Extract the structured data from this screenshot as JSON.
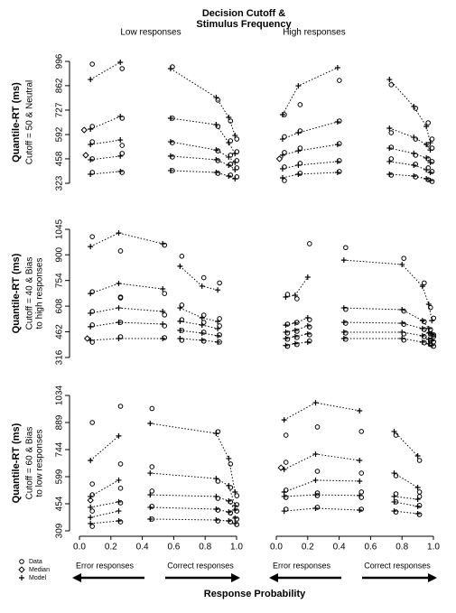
{
  "figure": {
    "title": [
      "Decision Cutoff &",
      "Stimulus Frequency"
    ],
    "xlabel": "Response Probability",
    "legend": [
      {
        "name": "Data",
        "marker": "circle"
      },
      {
        "name": "Median",
        "marker": "diamond"
      },
      {
        "name": "Model",
        "marker": "plus"
      }
    ]
  },
  "chart_data": [
    {
      "type": "scatter",
      "title": "Low responses",
      "ylabel": "Quantile-RT (ms)",
      "subtitle": [
        "Cutoff = 50 & Neutral"
      ],
      "xlim": [
        0,
        1
      ],
      "ylim": [
        323,
        996
      ],
      "yticks": [
        323,
        458,
        592,
        727,
        862,
        996
      ],
      "groups": [
        {
          "x": [
            0.07,
            0.26
          ],
          "model": [
            [
              373,
              388
            ],
            [
              453,
              473
            ],
            [
              537,
              562
            ],
            [
              622,
              692
            ],
            [
              896,
              991
            ]
          ],
          "data": [
            [
              383,
              383
            ],
            [
              458,
              488
            ],
            [
              552,
              532
            ],
            [
              637,
              682
            ],
            [
              981,
              956
            ]
          ]
        },
        {
          "x": [
            0.58,
            0.87,
            0.95,
            0.99
          ],
          "model": [
            [
              393,
              383,
              363,
              348
            ],
            [
              473,
              453,
              423,
              398
            ],
            [
              552,
              507,
              468,
              438
            ],
            [
              682,
              647,
              547,
              487
            ],
            [
              956,
              797,
              687,
              587
            ]
          ],
          "data": [
            [
              393,
              378,
              368,
              358
            ],
            [
              468,
              448,
              428,
              408
            ],
            [
              547,
              502,
              478,
              448
            ],
            [
              682,
              637,
              557,
              497
            ],
            [
              966,
              782,
              667,
              567
            ]
          ]
        }
      ],
      "median": {
        "x": [
          0.03,
          0.04
        ],
        "values": [
          617,
          478
        ]
      }
    },
    {
      "type": "scatter",
      "title": "High responses",
      "xlim": [
        0,
        1
      ],
      "ylim": [
        323,
        996
      ],
      "groups": [
        {
          "x": [
            0.04,
            0.14,
            0.39
          ],
          "model": [
            [
              353,
              373,
              383
            ],
            [
              403,
              423,
              443
            ],
            [
              478,
              502,
              537
            ],
            [
              567,
              602,
              662
            ],
            [
              702,
              861,
              961
            ]
          ],
          "data": [
            [
              338,
              378,
              388
            ],
            [
              413,
              433,
              448
            ],
            [
              493,
              517,
              542
            ],
            [
              580,
              612,
              667
            ],
            [
              702,
              757,
              891
            ]
          ]
        },
        {
          "x": [
            0.72,
            0.875,
            0.955,
            0.98
          ],
          "model": [
            [
              373,
              363,
              348,
              338
            ],
            [
              443,
              423,
              398,
              383
            ],
            [
              517,
              488,
              463,
              438
            ],
            [
              627,
              577,
              537,
              507
            ],
            [
              896,
              747,
              637,
              547
            ]
          ],
          "data": [
            [
              368,
              358,
              343,
              333
            ],
            [
              458,
              428,
              408,
              388
            ],
            [
              522,
              478,
              458,
              443
            ],
            [
              602,
              567,
              537,
              517
            ],
            [
              867,
              737,
              657,
              567
            ]
          ]
        }
      ],
      "median": {
        "x": [
          0.02
        ],
        "values": [
          458
        ]
      }
    },
    {
      "type": "scatter",
      "ylabel": "Quantile-RT (ms)",
      "subtitle": [
        "Cutoff = 40 & Bias",
        "to high responses"
      ],
      "xlim": [
        0,
        1
      ],
      "ylim": [
        316,
        1045
      ],
      "yticks": [
        316,
        462,
        608,
        754,
        900,
        1045
      ],
      "groups": [
        {
          "x": [
            0.07,
            0.25,
            0.53
          ],
          "model": [
            [
              414,
              424,
              424
            ],
            [
              491,
              516,
              506
            ],
            [
              568,
              598,
              578
            ],
            [
              680,
              737,
              706
            ],
            [
              947,
              1024,
              963
            ]
          ],
          "data": [
            [
              403,
              434,
              429
            ],
            [
              501,
              516,
              496
            ],
            [
              578,
              655,
              558
            ],
            [
              690,
              660,
              680
            ],
            [
              1003,
              922,
              955
            ]
          ]
        },
        {
          "x": [
            0.64,
            0.78,
            0.88
          ],
          "model": [
            [
              424,
              414,
              404
            ],
            [
              470,
              455,
              440
            ],
            [
              522,
              501,
              480
            ],
            [
              598,
              542,
              521
            ],
            [
              835,
              722,
              700
            ]
          ],
          "data": [
            [
              414,
              409,
              404
            ],
            [
              470,
              460,
              445
            ],
            [
              531,
              516,
              496
            ],
            [
              614,
              557,
              537
            ],
            [
              892,
              770,
              740
            ]
          ]
        }
      ],
      "median": {
        "x": [
          0.05
        ],
        "values": [
          424
        ]
      }
    },
    {
      "type": "scatter",
      "xlim": [
        0,
        1
      ],
      "ylim": [
        316,
        1045
      ],
      "groups": [
        {
          "x": [
            0.06,
            0.12,
            0.2
          ],
          "model": [
            [
              384,
              395,
              404
            ],
            [
              424,
              435,
              450
            ],
            [
              460,
              470,
              496
            ],
            [
              500,
              512,
              542
            ],
            [
              660,
              670,
              773
            ]
          ],
          "data": [
            [
              380,
              390,
              410
            ],
            [
              420,
              430,
              445
            ],
            [
              455,
              465,
              490
            ],
            [
              506,
              516,
              531
            ],
            [
              675,
              650,
              963
            ]
          ]
        },
        {
          "x": [
            0.43,
            0.8,
            0.93,
            0.97,
            0.99
          ],
          "model": [
            [
              424,
              424,
              404,
              394,
              384
            ],
            [
              460,
              460,
              440,
              420,
              410
            ],
            [
              516,
              511,
              481,
              455,
              440
            ],
            [
              598,
              588,
              526,
              481,
              450
            ],
            [
              870,
              845,
              721,
              619,
              526
            ]
          ],
          "data": [
            [
              420,
              415,
              400,
              390,
              380
            ],
            [
              455,
              450,
              435,
              415,
              405
            ],
            [
              511,
              505,
              475,
              450,
              435
            ],
            [
              590,
              580,
              520,
              475,
              445
            ],
            [
              941,
              880,
              740,
              600,
              540
            ]
          ]
        }
      ]
    },
    {
      "type": "scatter",
      "ylabel": "Quantile-RT (ms)",
      "subtitle": [
        "Cutoff = 60 & Bias",
        "to low responses"
      ],
      "xlim": [
        0,
        1
      ],
      "ylim": [
        309,
        1034
      ],
      "yticks": [
        309,
        454,
        599,
        744,
        889,
        1034
      ],
      "xticks": [
        {
          "value": 0,
          "label": "0.0"
        },
        {
          "value": 0.2,
          "label": "0.2"
        },
        {
          "value": 0.4,
          "label": "0.4"
        },
        {
          "value": 0.6,
          "label": "0.6"
        },
        {
          "value": 0.8,
          "label": "0.8"
        },
        {
          "value": 1,
          "label": "1.0"
        }
      ],
      "arrow_labels": [
        "Error responses",
        "Correct responses"
      ],
      "groups": [
        {
          "x": [
            0.07,
            0.25
          ],
          "model": [
            [
              348,
              362
            ],
            [
              381,
              415
            ],
            [
              435,
              464
            ],
            [
              493,
              580
            ],
            [
              686,
              817
            ]
          ],
          "data": [
            [
              333,
              357
            ],
            [
              415,
              459
            ],
            [
              502,
              537
            ],
            [
              560,
              667
            ],
            [
              889,
              976
            ]
          ]
        },
        {
          "x": [
            0.45,
            0.87,
            0.95,
            0.99
          ],
          "model": [
            [
              372,
              367,
              362,
              348
            ],
            [
              435,
              425,
              410,
              377
            ],
            [
              502,
              493,
              469,
              420
            ],
            [
              618,
              589,
              551,
              444
            ],
            [
              884,
              831,
              696,
              517
            ]
          ],
          "data": [
            [
              372,
              362,
              357,
              343
            ],
            [
              440,
              420,
              405,
              372
            ],
            [
              522,
              483,
              464,
              415
            ],
            [
              652,
              575,
              541,
              449
            ],
            [
              964,
              840,
              667,
              497
            ]
          ]
        }
      ],
      "median": {
        "x": [
          0.07
        ],
        "values": [
          473
        ]
      }
    },
    {
      "type": "scatter",
      "xlim": [
        0,
        1
      ],
      "ylim": [
        309,
        1034
      ],
      "xticks": [
        {
          "value": 0,
          "label": "0.0"
        },
        {
          "value": 0.2,
          "label": "0.2"
        },
        {
          "value": 0.4,
          "label": "0.4"
        },
        {
          "value": 0.6,
          "label": "0.6"
        },
        {
          "value": 0.8,
          "label": "0.8"
        },
        {
          "value": 1,
          "label": "1.0"
        }
      ],
      "arrow_labels": [
        "Error responses",
        "Correct responses"
      ],
      "groups": [
        {
          "x": [
            0.05,
            0.25,
            0.53
          ],
          "model": [
            [
              415,
              430,
              420
            ],
            [
              493,
              502,
              498
            ],
            [
              517,
              580,
              575
            ],
            [
              638,
              720,
              686
            ],
            [
              903,
              995,
              952
            ]
          ],
          "data": [
            [
              425,
              435,
              425
            ],
            [
              488,
              498,
              488
            ],
            [
              527,
              512,
              517
            ],
            [
              676,
              628,
              618
            ],
            [
              821,
              865,
              841
            ]
          ]
        },
        {
          "x": [
            0.75,
            0.9
          ],
          "model": [
            [
              415,
              401
            ],
            [
              464,
              440
            ],
            [
              493,
              478
            ],
            [
              618,
              541
            ],
            [
              841,
              710
            ]
          ],
          "data": [
            [
              410,
              396
            ],
            [
              464,
              445
            ],
            [
              507,
              493
            ],
            [
              604,
              517
            ],
            [
              821,
              686
            ]
          ]
        }
      ],
      "median": {
        "x": [
          0.03
        ],
        "values": [
          647
        ]
      }
    }
  ]
}
